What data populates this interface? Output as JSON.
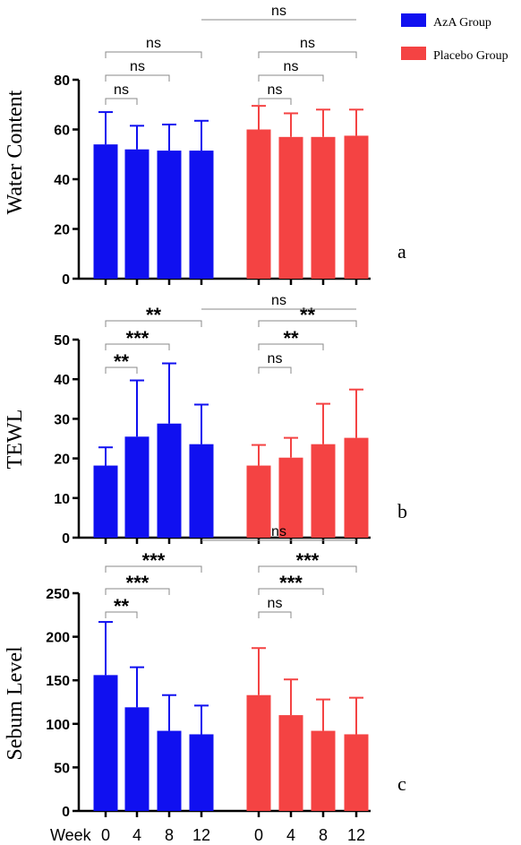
{
  "legend": [
    {
      "label": "AzA Group",
      "color": "#1010f0"
    },
    {
      "label": "Placebo Group",
      "color": "#f44343"
    }
  ],
  "x_axis": {
    "prefix": "Week",
    "tick_labels": [
      "0",
      "4",
      "8",
      "12",
      "0",
      "4",
      "8",
      "12"
    ]
  },
  "chart_data": [
    {
      "type": "bar",
      "panel_label": "a",
      "ylabel": "Water Content",
      "ylim": [
        0,
        80
      ],
      "yticks": [
        0,
        20,
        40,
        60,
        80
      ],
      "categories": [
        "0",
        "4",
        "8",
        "12"
      ],
      "series": [
        {
          "name": "AzA Group",
          "color": "#1010f0",
          "values": [
            54,
            52,
            51.5,
            51.5
          ],
          "error": [
            13,
            9.5,
            10.5,
            12
          ]
        },
        {
          "name": "Placebo Group",
          "color": "#f44343",
          "values": [
            60,
            57,
            57,
            57.5
          ],
          "error": [
            9.5,
            9.5,
            11,
            10.5
          ]
        }
      ],
      "significance": [
        {
          "from": 0,
          "to": 1,
          "label": "ns"
        },
        {
          "from": 0,
          "to": 2,
          "label": "ns"
        },
        {
          "from": 0,
          "to": 3,
          "label": "ns"
        },
        {
          "from": 4,
          "to": 5,
          "label": "ns"
        },
        {
          "from": 4,
          "to": 6,
          "label": "ns"
        },
        {
          "from": 4,
          "to": 7,
          "label": "ns"
        },
        {
          "from": 3,
          "to": 7,
          "label": "ns",
          "style": "line"
        }
      ]
    },
    {
      "type": "bar",
      "panel_label": "b",
      "ylabel": "TEWL",
      "ylim": [
        0,
        50
      ],
      "yticks": [
        0,
        10,
        20,
        30,
        40,
        50
      ],
      "categories": [
        "0",
        "4",
        "8",
        "12"
      ],
      "series": [
        {
          "name": "AzA Group",
          "color": "#1010f0",
          "values": [
            18.2,
            25.5,
            28.8,
            23.6
          ],
          "error": [
            4.6,
            14.2,
            15.2,
            10
          ]
        },
        {
          "name": "Placebo Group",
          "color": "#f44343",
          "values": [
            18.2,
            20.2,
            23.6,
            25.2
          ],
          "error": [
            5.2,
            5,
            10.2,
            12.2
          ]
        }
      ],
      "significance": [
        {
          "from": 0,
          "to": 1,
          "label": "**"
        },
        {
          "from": 0,
          "to": 2,
          "label": "***"
        },
        {
          "from": 0,
          "to": 3,
          "label": "**"
        },
        {
          "from": 4,
          "to": 5,
          "label": "ns"
        },
        {
          "from": 4,
          "to": 6,
          "label": "**"
        },
        {
          "from": 4,
          "to": 7,
          "label": "**"
        },
        {
          "from": 3,
          "to": 7,
          "label": "ns",
          "style": "line"
        }
      ]
    },
    {
      "type": "bar",
      "panel_label": "c",
      "ylabel": "Sebum Level",
      "ylim": [
        0,
        250
      ],
      "yticks": [
        0,
        50,
        100,
        150,
        200,
        250
      ],
      "categories": [
        "0",
        "4",
        "8",
        "12"
      ],
      "series": [
        {
          "name": "AzA Group",
          "color": "#1010f0",
          "values": [
            156,
            119,
            92,
            88
          ],
          "error": [
            61,
            46,
            41,
            33
          ]
        },
        {
          "name": "Placebo Group",
          "color": "#f44343",
          "values": [
            133,
            110,
            92,
            88
          ],
          "error": [
            54,
            41,
            36,
            42
          ]
        }
      ],
      "significance": [
        {
          "from": 0,
          "to": 1,
          "label": "**"
        },
        {
          "from": 0,
          "to": 2,
          "label": "***"
        },
        {
          "from": 0,
          "to": 3,
          "label": "***"
        },
        {
          "from": 4,
          "to": 5,
          "label": "ns"
        },
        {
          "from": 4,
          "to": 6,
          "label": "***"
        },
        {
          "from": 4,
          "to": 7,
          "label": "***"
        },
        {
          "from": 3,
          "to": 7,
          "label": "ns",
          "style": "line"
        }
      ]
    }
  ]
}
